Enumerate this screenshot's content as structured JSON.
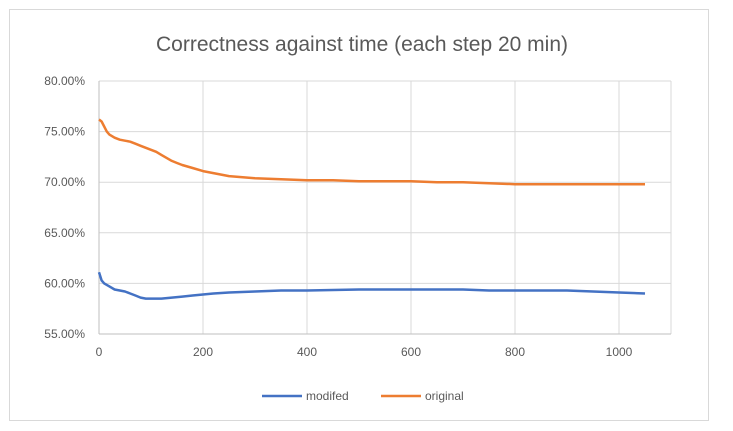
{
  "chart_data": {
    "type": "line",
    "title": "Correctness against time (each step 20 min)",
    "xlabel": "",
    "ylabel": "",
    "xlim": [
      0,
      1100
    ],
    "ylim": [
      0.55,
      0.8
    ],
    "x_ticks": [
      0,
      200,
      400,
      600,
      800,
      1000
    ],
    "x_tick_labels": [
      "0",
      "200",
      "400",
      "600",
      "800",
      "1000"
    ],
    "y_ticks": [
      0.55,
      0.6,
      0.65,
      0.7,
      0.75,
      0.8
    ],
    "y_tick_labels": [
      "55.00%",
      "60.00%",
      "65.00%",
      "70.00%",
      "75.00%",
      "80.00%"
    ],
    "grid": true,
    "legend_position": "bottom",
    "series": [
      {
        "name": "modifed",
        "color": "#4472c4",
        "points": [
          [
            0,
            0.611
          ],
          [
            5,
            0.603
          ],
          [
            10,
            0.6
          ],
          [
            20,
            0.597
          ],
          [
            30,
            0.594
          ],
          [
            40,
            0.593
          ],
          [
            50,
            0.592
          ],
          [
            60,
            0.59
          ],
          [
            70,
            0.588
          ],
          [
            80,
            0.586
          ],
          [
            90,
            0.585
          ],
          [
            100,
            0.585
          ],
          [
            120,
            0.585
          ],
          [
            140,
            0.586
          ],
          [
            160,
            0.587
          ],
          [
            180,
            0.588
          ],
          [
            200,
            0.589
          ],
          [
            220,
            0.59
          ],
          [
            250,
            0.591
          ],
          [
            300,
            0.592
          ],
          [
            350,
            0.593
          ],
          [
            400,
            0.593
          ],
          [
            500,
            0.594
          ],
          [
            600,
            0.594
          ],
          [
            700,
            0.594
          ],
          [
            750,
            0.593
          ],
          [
            800,
            0.593
          ],
          [
            900,
            0.593
          ],
          [
            950,
            0.592
          ],
          [
            1000,
            0.591
          ],
          [
            1050,
            0.59
          ]
        ]
      },
      {
        "name": "original",
        "color": "#ed7d31",
        "points": [
          [
            0,
            0.762
          ],
          [
            5,
            0.76
          ],
          [
            10,
            0.755
          ],
          [
            15,
            0.75
          ],
          [
            20,
            0.747
          ],
          [
            30,
            0.744
          ],
          [
            40,
            0.742
          ],
          [
            50,
            0.741
          ],
          [
            60,
            0.74
          ],
          [
            70,
            0.738
          ],
          [
            80,
            0.736
          ],
          [
            90,
            0.734
          ],
          [
            100,
            0.732
          ],
          [
            110,
            0.73
          ],
          [
            120,
            0.727
          ],
          [
            130,
            0.724
          ],
          [
            140,
            0.721
          ],
          [
            150,
            0.719
          ],
          [
            160,
            0.717
          ],
          [
            180,
            0.714
          ],
          [
            200,
            0.711
          ],
          [
            220,
            0.709
          ],
          [
            250,
            0.706
          ],
          [
            300,
            0.704
          ],
          [
            350,
            0.703
          ],
          [
            400,
            0.702
          ],
          [
            450,
            0.702
          ],
          [
            500,
            0.701
          ],
          [
            600,
            0.701
          ],
          [
            650,
            0.7
          ],
          [
            700,
            0.7
          ],
          [
            750,
            0.699
          ],
          [
            800,
            0.698
          ],
          [
            900,
            0.698
          ],
          [
            1000,
            0.698
          ],
          [
            1050,
            0.698
          ]
        ]
      }
    ]
  }
}
